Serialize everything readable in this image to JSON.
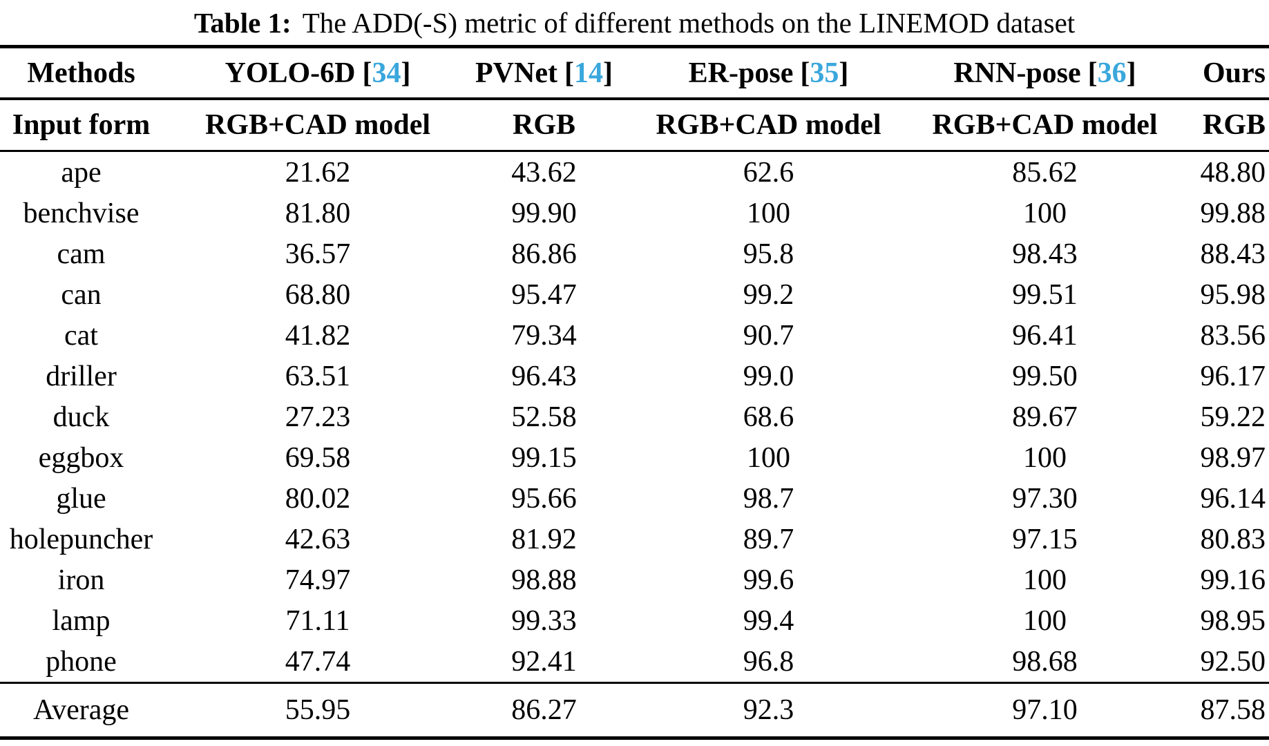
{
  "colors": {
    "citation": "#3aa7dc",
    "text": "#000000",
    "background": "#ffffff"
  },
  "punctuation": {
    "bracket_open": "[",
    "bracket_close": "]"
  },
  "caption": {
    "label": "Table 1:",
    "text": "The ADD(-S) metric of different methods on the LINEMOD dataset"
  },
  "table": {
    "header": {
      "methods_label": "Methods",
      "columns": [
        {
          "name": "YOLO-6D",
          "ref": "34"
        },
        {
          "name": "PVNet",
          "ref": "14"
        },
        {
          "name": "ER-pose",
          "ref": "35"
        },
        {
          "name": "RNN-pose",
          "ref": "36"
        },
        {
          "name": "Ours",
          "ref": null
        }
      ],
      "input_form_label": "Input form",
      "input_forms": [
        "RGB+CAD model",
        "RGB",
        "RGB+CAD model",
        "RGB+CAD model",
        "RGB"
      ]
    },
    "rows": [
      {
        "object": "ape",
        "values": [
          "21.62",
          "43.62",
          "62.6",
          "85.62",
          "48.80"
        ]
      },
      {
        "object": "benchvise",
        "values": [
          "81.80",
          "99.90",
          "100",
          "100",
          "99.88"
        ]
      },
      {
        "object": "cam",
        "values": [
          "36.57",
          "86.86",
          "95.8",
          "98.43",
          "88.43"
        ]
      },
      {
        "object": "can",
        "values": [
          "68.80",
          "95.47",
          "99.2",
          "99.51",
          "95.98"
        ]
      },
      {
        "object": "cat",
        "values": [
          "41.82",
          "79.34",
          "90.7",
          "96.41",
          "83.56"
        ]
      },
      {
        "object": "driller",
        "values": [
          "63.51",
          "96.43",
          "99.0",
          "99.50",
          "96.17"
        ]
      },
      {
        "object": "duck",
        "values": [
          "27.23",
          "52.58",
          "68.6",
          "89.67",
          "59.22"
        ]
      },
      {
        "object": "eggbox",
        "values": [
          "69.58",
          "99.15",
          "100",
          "100",
          "98.97"
        ]
      },
      {
        "object": "glue",
        "values": [
          "80.02",
          "95.66",
          "98.7",
          "97.30",
          "96.14"
        ]
      },
      {
        "object": "holepuncher",
        "values": [
          "42.63",
          "81.92",
          "89.7",
          "97.15",
          "80.83"
        ]
      },
      {
        "object": "iron",
        "values": [
          "74.97",
          "98.88",
          "99.6",
          "100",
          "99.16"
        ]
      },
      {
        "object": "lamp",
        "values": [
          "71.11",
          "99.33",
          "99.4",
          "100",
          "98.95"
        ]
      },
      {
        "object": "phone",
        "values": [
          "47.74",
          "92.41",
          "96.8",
          "98.68",
          "92.50"
        ]
      }
    ],
    "average": {
      "label": "Average",
      "values": [
        "55.95",
        "86.27",
        "92.3",
        "97.10",
        "87.58"
      ]
    }
  }
}
